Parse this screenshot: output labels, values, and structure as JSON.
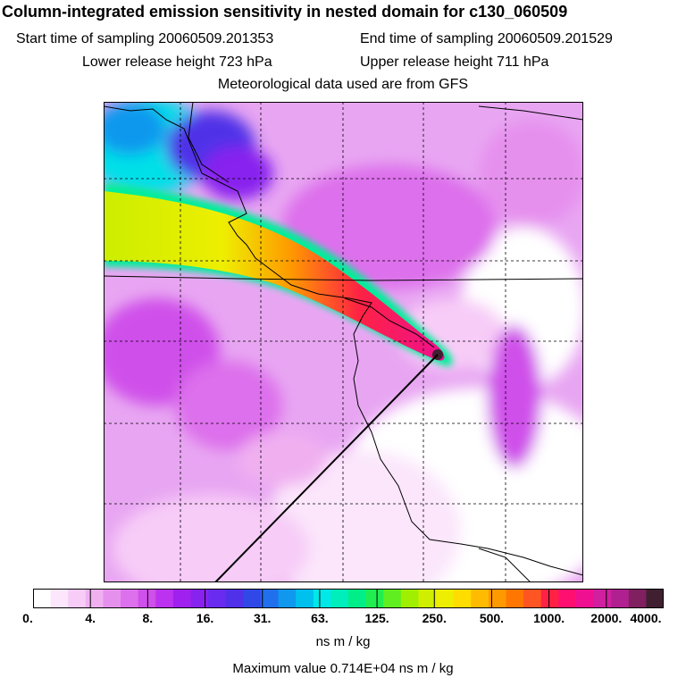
{
  "title": "Column-integrated emission sensitivity in nested domain for c130_060509",
  "header": {
    "start_label": "Start time of sampling",
    "start_value": "20060509.201353",
    "end_label": "End time of sampling",
    "end_value": "20060509.201529",
    "lower_label": "Lower release height",
    "lower_value": "723 hPa",
    "upper_label": "Upper release height",
    "upper_value": "711 hPa",
    "met_source": "Meteorological data used are from GFS"
  },
  "legend": {
    "ticks": [
      "0.",
      "4.",
      "8.",
      "16.",
      "31.",
      "63.",
      "125.",
      "250.",
      "500.",
      "1000.",
      "2000.",
      "4000."
    ],
    "colors": [
      "#ffffff",
      "#fbe6fb",
      "#f7ccf7",
      "#f0b0f0",
      "#e690ee",
      "#dd70ec",
      "#cf50ea",
      "#bb33ee",
      "#a020f0",
      "#8822ee",
      "#6a2bf0",
      "#5030e8",
      "#3048e8",
      "#2070ee",
      "#1098ee",
      "#00c0ee",
      "#00e8e8",
      "#00eebb",
      "#00ee88",
      "#20ee50",
      "#60ee20",
      "#a0ee00",
      "#d0ee00",
      "#eeee00",
      "#ffdd00",
      "#ffbb00",
      "#ff9900",
      "#ff7700",
      "#ff5522",
      "#ff2244",
      "#ff1070",
      "#ee1090",
      "#d020a0",
      "#b02090",
      "#802060",
      "#402030"
    ],
    "units": "ns m / kg",
    "max_label": "Maximum value",
    "max_value": "0.714E+04",
    "max_units": "ns m / kg"
  }
}
